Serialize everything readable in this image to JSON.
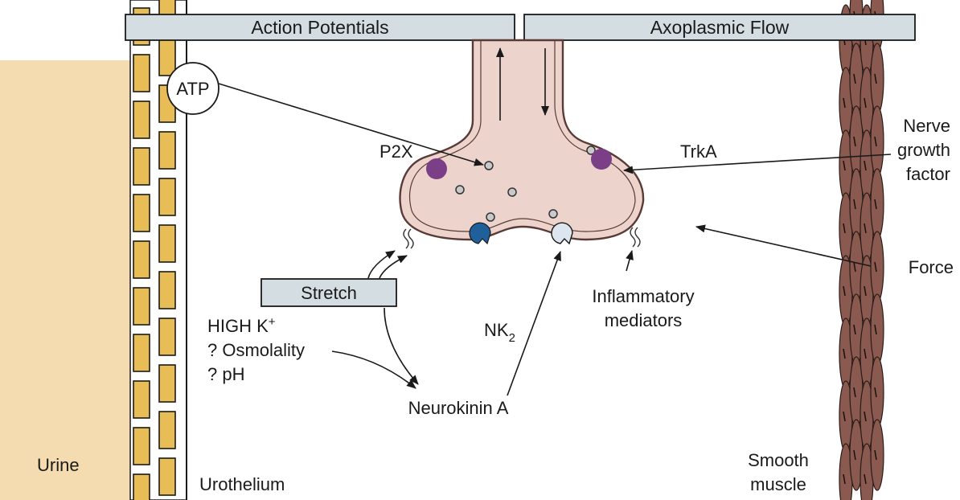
{
  "banners": {
    "action_potentials": "Action Potentials",
    "axoplasmic_flow": "Axoplasmic Flow"
  },
  "labels": {
    "atp": "ATP",
    "p2x": "P2X",
    "trka": "TrkA",
    "ngf_1": "Nerve",
    "ngf_2": "growth",
    "ngf_3": "factor",
    "force": "Force",
    "stretch": "Stretch",
    "high_k": "HIGH K",
    "high_k_sup": "+",
    "osmolality": "? Osmolality",
    "ph": "? pH",
    "nk2": "NK",
    "nk2_sub": "2",
    "neurokinin": "Neurokinin A",
    "inflam_1": "Inflammatory",
    "inflam_2": "mediators",
    "urine": "Urine",
    "urothelium": "Urothelium",
    "smooth_1": "Smooth",
    "smooth_2": "muscle"
  },
  "colors": {
    "urine": "#f4dcb0",
    "urothelium_cell": "#e8bd55",
    "nerve_fill": "#ecd3cb",
    "nerve_stroke": "#5a3a36",
    "p2x_trka": "#7b3f87",
    "nk_receptor": "#1f5f9a",
    "nk_receptor_light": "#dde6ef",
    "banner": "#d4dde2",
    "muscle": "#8a5a50"
  }
}
